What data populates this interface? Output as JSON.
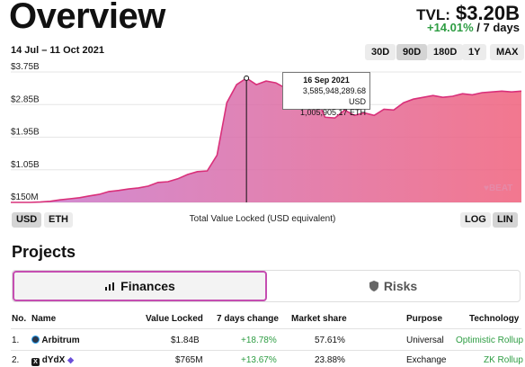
{
  "header": {
    "title": "Overview",
    "tvl_label": "TVL:",
    "tvl_value": "$3.20B",
    "change_value": "+14.01%",
    "change_period": "/ 7 days"
  },
  "chart_controls": {
    "date_range": "14 Jul – 11 Oct 2021",
    "ranges": [
      "30D",
      "90D",
      "180D",
      "1Y",
      "MAX"
    ],
    "active_range": "90D",
    "units": [
      "USD",
      "ETH"
    ],
    "active_unit": "USD",
    "scales": [
      "LOG",
      "LIN"
    ],
    "active_scale": "LIN",
    "caption": "Total Value Locked (USD equivalent)"
  },
  "tooltip": {
    "date": "16 Sep 2021",
    "usd": "3,585,948,289.68 USD",
    "eth": "1,005,905.17 ETH"
  },
  "watermark": "BEAT",
  "chart_data": {
    "type": "area",
    "title": "",
    "xlabel": "",
    "ylabel": "",
    "x_range": [
      "14 Jul 2021",
      "11 Oct 2021"
    ],
    "ylim": [
      0.15,
      3.75
    ],
    "y_unit": "B USD",
    "y_ticks": [
      "$150M",
      "$1.05B",
      "$1.95B",
      "$2.85B",
      "$3.75B"
    ],
    "y_tick_values": [
      0.15,
      1.05,
      1.95,
      2.85,
      3.75
    ],
    "grid": true,
    "series": [
      {
        "values": [
          0.1,
          0.12,
          0.13,
          0.16,
          0.18,
          0.22,
          0.25,
          0.28,
          0.33,
          0.37,
          0.45,
          0.48,
          0.52,
          0.55,
          0.6,
          0.7,
          0.72,
          0.8,
          0.92,
          1.0,
          1.02,
          1.45,
          2.9,
          3.4,
          3.58,
          3.4,
          3.5,
          3.45,
          3.3,
          3.38,
          3.25,
          3.15,
          2.5,
          2.48,
          2.7,
          2.55,
          2.62,
          2.55,
          2.72,
          2.7,
          2.9,
          3.0,
          3.05,
          3.1,
          3.05,
          3.08,
          3.15,
          3.12,
          3.18,
          3.2,
          3.22,
          3.2,
          3.22
        ]
      }
    ]
  },
  "projects": {
    "heading": "Projects",
    "tabs": [
      "Finances",
      "Risks"
    ],
    "active_tab": "Finances",
    "columns": [
      "No.",
      "Name",
      "Value Locked",
      "7 days change",
      "Market share",
      "Purpose",
      "Technology"
    ],
    "rows": [
      {
        "no": "1.",
        "name": "Arbitrum",
        "value": "$1.84B",
        "change": "+18.78%",
        "share": "57.61%",
        "purpose": "Universal",
        "tech": "Optimistic Rollup",
        "icon_color": "#2d374b"
      },
      {
        "no": "2.",
        "name": "dYdX",
        "value": "$765M",
        "change": "+13.67%",
        "share": "23.88%",
        "purpose": "Exchange",
        "tech": "ZK Rollup",
        "icon_color": "#1a1a1a"
      }
    ]
  },
  "colors": {
    "accent": "#c54eb1",
    "positive": "#2e9d43",
    "gradient_start": "#c779d0",
    "gradient_end": "#f0607b"
  }
}
